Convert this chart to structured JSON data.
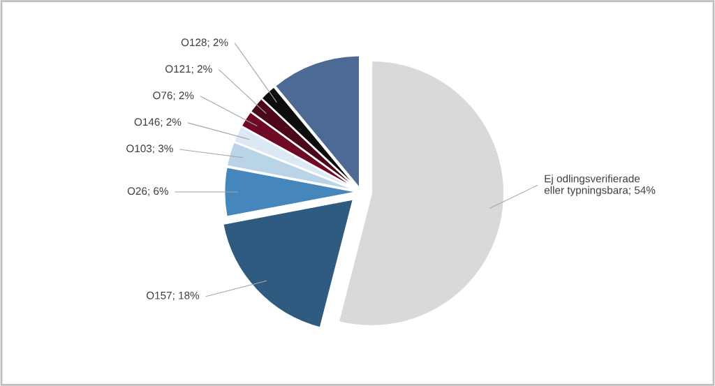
{
  "chart_data": {
    "type": "pie",
    "categories": [
      "Ej odlingsverifierade\neller typningsbara",
      "O157",
      "O26",
      "O103",
      "O146",
      "O76",
      "O121",
      "O128",
      null
    ],
    "values": [
      54,
      18,
      6,
      3,
      2,
      2,
      2,
      2,
      11
    ],
    "value_labels": [
      "54%",
      "18%",
      "6%",
      "3%",
      "2%",
      "2%",
      "2%",
      "2%",
      null
    ],
    "colors": [
      "#d9d9d9",
      "#2e5b7f",
      "#4587bc",
      "#b9d3e7",
      "#dce8f3",
      "#6e0a25",
      "#4a0818",
      "#0d0d0d",
      "#4d6a94"
    ]
  }
}
